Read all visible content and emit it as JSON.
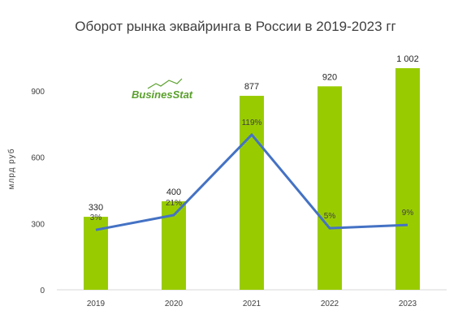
{
  "chart_data": {
    "type": "bar",
    "title": "Оборот рынка эквайринга в России в 2019-2023 гг",
    "ylabel": "млрд  руб",
    "xlabel": "",
    "categories": [
      "2019",
      "2020",
      "2021",
      "2022",
      "2023"
    ],
    "ylim": [
      0,
      1002
    ],
    "yticks": [
      0,
      300,
      600,
      900
    ],
    "grid": false,
    "legend": "none",
    "series": [
      {
        "type": "bar",
        "color": "#99cc00",
        "values": [
          330,
          400,
          877,
          920,
          1002
        ],
        "labels": [
          "330",
          "400",
          "877",
          "920",
          "1 002"
        ]
      },
      {
        "type": "line",
        "color": "#4472c4",
        "values": [
          3,
          21,
          119,
          5,
          9
        ],
        "labels": [
          "3%",
          "21%",
          "119%",
          "5%",
          "9%"
        ],
        "ylim": [
          -70,
          200
        ]
      }
    ]
  },
  "logo": {
    "text": "BusinesStat",
    "icon": "rising-chart-icon",
    "color": "#5aa02c"
  }
}
